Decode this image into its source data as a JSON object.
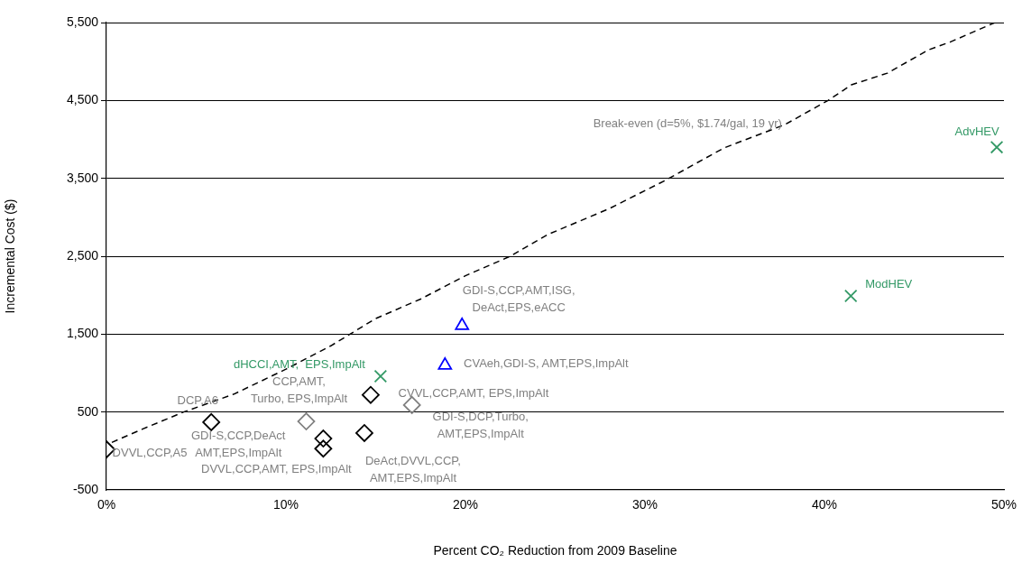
{
  "chart_data": {
    "type": "scatter",
    "xlabel": "Percent CO₂ Reduction from 2009 Baseline",
    "ylabel": "Incremental Cost ($)",
    "xlim": [
      0,
      50
    ],
    "xticks": [
      {
        "value": 0,
        "label": "0%"
      },
      {
        "value": 10,
        "label": "10%"
      },
      {
        "value": 20,
        "label": "20%"
      },
      {
        "value": 30,
        "label": "30%"
      },
      {
        "value": 40,
        "label": "40%"
      },
      {
        "value": 50,
        "label": "50%"
      }
    ],
    "ylim": [
      -500,
      5500
    ],
    "yticks": [
      {
        "value": -500,
        "label": "-500"
      },
      {
        "value": 500,
        "label": "500"
      },
      {
        "value": 1500,
        "label": "1,500"
      },
      {
        "value": 2500,
        "label": "2,500"
      },
      {
        "value": 3500,
        "label": "3,500"
      },
      {
        "value": 4500,
        "label": "4,500"
      },
      {
        "value": 5500,
        "label": "5,500"
      }
    ],
    "grid": "y",
    "series": [
      {
        "marker": "diamond",
        "color": "#000000",
        "x": [
          0,
          5.84,
          12.08,
          12.08,
          14.37,
          14.72
        ],
        "values": [
          20,
          370,
          160,
          30,
          230,
          720
        ]
      },
      {
        "marker": "diamond",
        "color": "#808080",
        "x": [
          11.13,
          17.02
        ],
        "values": [
          380,
          590
        ]
      },
      {
        "marker": "triangle",
        "color": "#0000ff",
        "x": [
          18.86,
          19.81
        ],
        "values": [
          1100,
          1610
        ]
      },
      {
        "marker": "cross",
        "color": "#339966",
        "x": [
          15.27,
          41.47,
          49.6
        ],
        "values": [
          960,
          1990,
          3900
        ]
      },
      {
        "type": "line",
        "marker": "none",
        "line_style": "dashed",
        "color": "#000000",
        "x": [
          0.3,
          2,
          4.3,
          7.1,
          10,
          12.5,
          15,
          17.5,
          20,
          22.5,
          24.6,
          28,
          31.1,
          34.4,
          37.8,
          40.2,
          41.5,
          43.5,
          45.8,
          47,
          49.5
        ],
        "values": [
          110,
          280,
          500,
          730,
          1050,
          1350,
          1700,
          1950,
          2250,
          2500,
          2780,
          3110,
          3470,
          3890,
          4190,
          4500,
          4700,
          4850,
          5150,
          5250,
          5500
        ]
      }
    ],
    "annotations": [
      {
        "text": "DVVL,CCP,A5",
        "x": 0,
        "y": 20
      },
      {
        "text": "DCP,A6",
        "x": 5.84,
        "y": 370
      },
      {
        "text": "GDI-S,CCP,DeAct\nAMT,EPS,ImpAlt",
        "x": 5.84,
        "y": 370
      },
      {
        "text": "CCP,AMT,\nTurbo, EPS,ImpAlt",
        "x": 11.13,
        "y": 380
      },
      {
        "text": "DVVL,CCP,AMT, EPS,ImpAlt",
        "x": 12.08,
        "y": 30
      },
      {
        "text": "DeAct,DVVL,CCP,\nAMT,EPS,ImpAlt",
        "x": 14.37,
        "y": 230
      },
      {
        "text": "CVVL,CCP,AMT, EPS,ImpAlt",
        "x": 14.72,
        "y": 720
      },
      {
        "text": "GDI-S,DCP,Turbo,\nAMT,EPS,ImpAlt",
        "x": 17.02,
        "y": 590
      },
      {
        "text": "dHCCI,AMT,  EPS,ImpAlt",
        "x": 15.27,
        "y": 960
      },
      {
        "text": "CVAeh,GDI-S, AMT,EPS,ImpAlt",
        "x": 18.86,
        "y": 1100
      },
      {
        "text": "GDI-S,CCP,AMT,ISG,\nDeAct,EPS,eACC",
        "x": 19.81,
        "y": 1610
      },
      {
        "text": "ModHEV",
        "x": 41.47,
        "y": 1990
      },
      {
        "text": "AdvHEV",
        "x": 49.6,
        "y": 3900
      },
      {
        "text": "Break-even (d=5%, $1.74/gal, 19 yr)",
        "x": 37.8,
        "y": 4190
      }
    ]
  }
}
